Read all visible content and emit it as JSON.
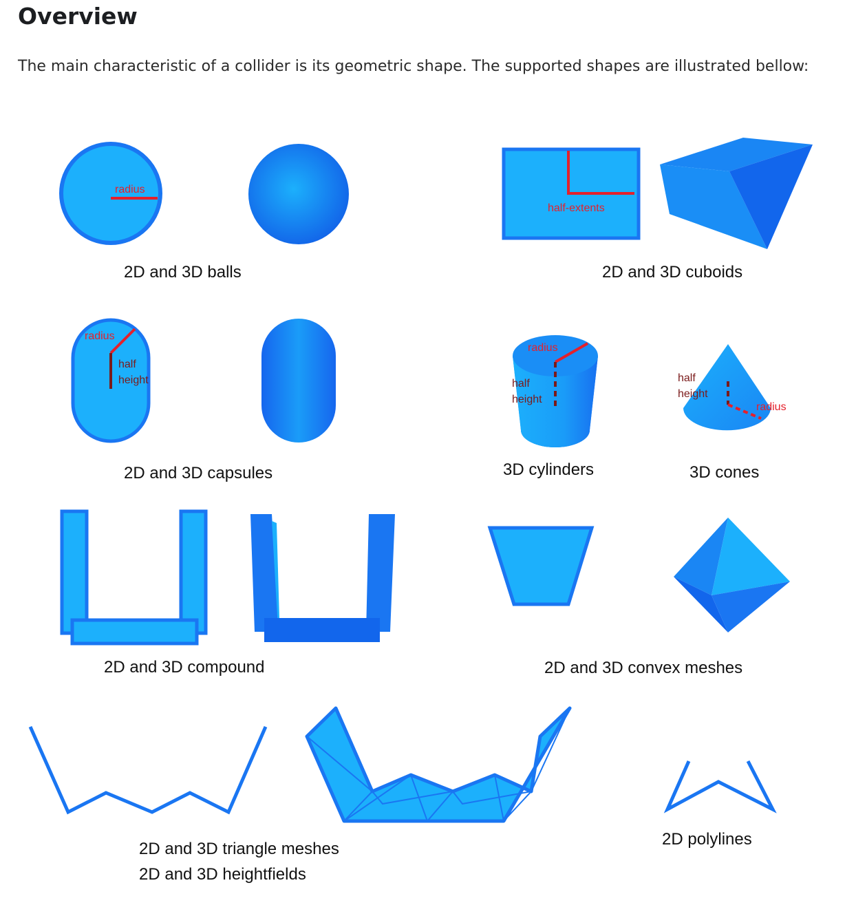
{
  "page": {
    "title": "Overview",
    "intro": "The main characteristic of a collider is its geometric shape. The supported shapes are illustrated bellow:"
  },
  "colors": {
    "fill_light": "#1cb0fc",
    "stroke_blue": "#1a76f2",
    "shade_dark": "#1262e8",
    "annotation_red": "#e5202b",
    "annotation_dark": "#7a1a1a"
  },
  "figures": {
    "balls": {
      "caption": "2D and 3D balls",
      "label_radius": "radius"
    },
    "cuboids": {
      "caption": "2D and 3D cuboids",
      "label_half_extents": "half-extents"
    },
    "capsules": {
      "caption": "2D and 3D capsules",
      "label_radius": "radius",
      "label_half": "half",
      "label_height": "height"
    },
    "cylinders": {
      "caption": "3D cylinders",
      "label_radius": "radius",
      "label_half": "half",
      "label_height": "height"
    },
    "cones": {
      "caption": "3D cones",
      "label_radius": "radius",
      "label_half": "half",
      "label_height": "height"
    },
    "compound": {
      "caption": "2D and 3D compound"
    },
    "convex": {
      "caption": "2D and 3D convex meshes"
    },
    "trimesh": {
      "caption_line1": "2D and 3D triangle meshes",
      "caption_line2": "2D and 3D heightfields"
    },
    "polylines": {
      "caption": "2D polylines"
    }
  }
}
